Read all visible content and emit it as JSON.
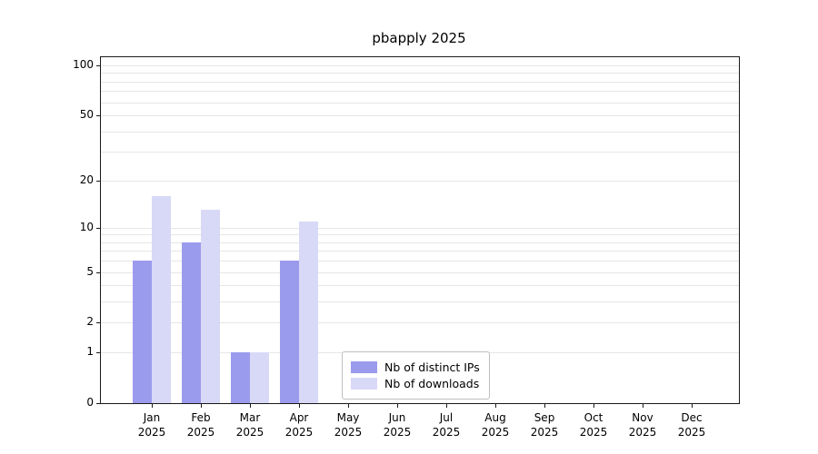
{
  "chart_data": {
    "type": "bar",
    "title": "pbapply 2025",
    "x_labels": [
      "Jan 2025",
      "Feb 2025",
      "Mar 2025",
      "Apr 2025",
      "May 2025",
      "Jun 2025",
      "Jul 2025",
      "Aug 2025",
      "Sep 2025",
      "Oct 2025",
      "Nov 2025",
      "Dec 2025"
    ],
    "series": [
      {
        "name": "Nb of distinct IPs",
        "color": "#9b9bee",
        "values": [
          6,
          8,
          1,
          6,
          0,
          0,
          0,
          0,
          0,
          0,
          0,
          0
        ]
      },
      {
        "name": "Nb of downloads",
        "color": "#d8d8f7",
        "values": [
          16,
          13,
          1,
          11,
          0,
          0,
          0,
          0,
          0,
          0,
          0,
          0
        ]
      }
    ],
    "y_ticks": [
      0,
      1,
      2,
      5,
      10,
      20,
      50,
      100
    ],
    "gridline_values": [
      1,
      2,
      3,
      4,
      5,
      6,
      7,
      8,
      9,
      10,
      20,
      30,
      40,
      50,
      60,
      70,
      80,
      90,
      100
    ],
    "scale": "log1p",
    "grid": true,
    "ylim": [
      0,
      112
    ],
    "legend_position": "inside-bottom-center",
    "axis_color": "#1a1a1a",
    "grid_color": "#e6e6e6",
    "background_color": "#ffffff"
  }
}
